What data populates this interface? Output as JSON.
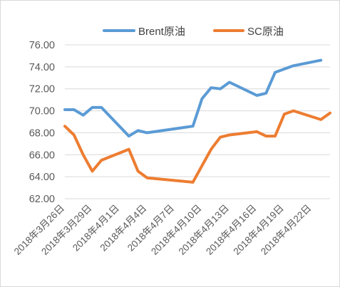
{
  "chart_data": {
    "type": "line",
    "title": "",
    "xlabel": "",
    "ylabel": "",
    "ylim": [
      62,
      76
    ],
    "yticks": [
      "62.00",
      "64.00",
      "66.00",
      "68.00",
      "70.00",
      "72.00",
      "74.00",
      "76.00"
    ],
    "grid": true,
    "legend_position": "top",
    "x": [
      "2018年3月26日",
      "2018年3月27日",
      "2018年3月28日",
      "2018年3月29日",
      "2018年3月30日",
      "2018年4月2日",
      "2018年4月3日",
      "2018年4月4日",
      "2018年4月9日",
      "2018年4月10日",
      "2018年4月11日",
      "2018年4月12日",
      "2018年4月13日",
      "2018年4月16日",
      "2018年4月17日",
      "2018年4月18日",
      "2018年4月19日",
      "2018年4月20日",
      "2018年4月23日",
      "2018年4月24日"
    ],
    "x_dates": [
      "2018-03-26",
      "2018-03-27",
      "2018-03-28",
      "2018-03-29",
      "2018-03-30",
      "2018-04-02",
      "2018-04-03",
      "2018-04-04",
      "2018-04-09",
      "2018-04-10",
      "2018-04-11",
      "2018-04-12",
      "2018-04-13",
      "2018-04-16",
      "2018-04-17",
      "2018-04-18",
      "2018-04-19",
      "2018-04-20",
      "2018-04-23",
      "2018-04-24"
    ],
    "xtick_labels": [
      "2018年3月26日",
      "2018年3月29日",
      "2018年4月1日",
      "2018年4月4日",
      "2018年4月7日",
      "2018年4月10日",
      "2018年4月13日",
      "2018年4月16日",
      "2018年4月19日",
      "2018年4月22日"
    ],
    "xtick_dates": [
      "2018-03-26",
      "2018-03-29",
      "2018-04-01",
      "2018-04-04",
      "2018-04-07",
      "2018-04-10",
      "2018-04-13",
      "2018-04-16",
      "2018-04-19",
      "2018-04-22"
    ],
    "series": [
      {
        "name": "Brent原油",
        "color": "#5b9bd5",
        "values": [
          70.1,
          70.1,
          69.6,
          70.3,
          70.3,
          67.7,
          68.2,
          68.0,
          68.6,
          71.1,
          72.1,
          72.0,
          72.6,
          71.4,
          71.6,
          73.5,
          73.8,
          74.1,
          74.6,
          null
        ]
      },
      {
        "name": "SC原油",
        "color": "#ed7d31",
        "values": [
          68.6,
          67.8,
          66.0,
          64.5,
          65.5,
          66.5,
          64.5,
          63.9,
          63.5,
          65.0,
          66.5,
          67.6,
          67.8,
          68.1,
          67.7,
          67.7,
          69.7,
          70.0,
          69.2,
          69.8
        ]
      }
    ]
  }
}
